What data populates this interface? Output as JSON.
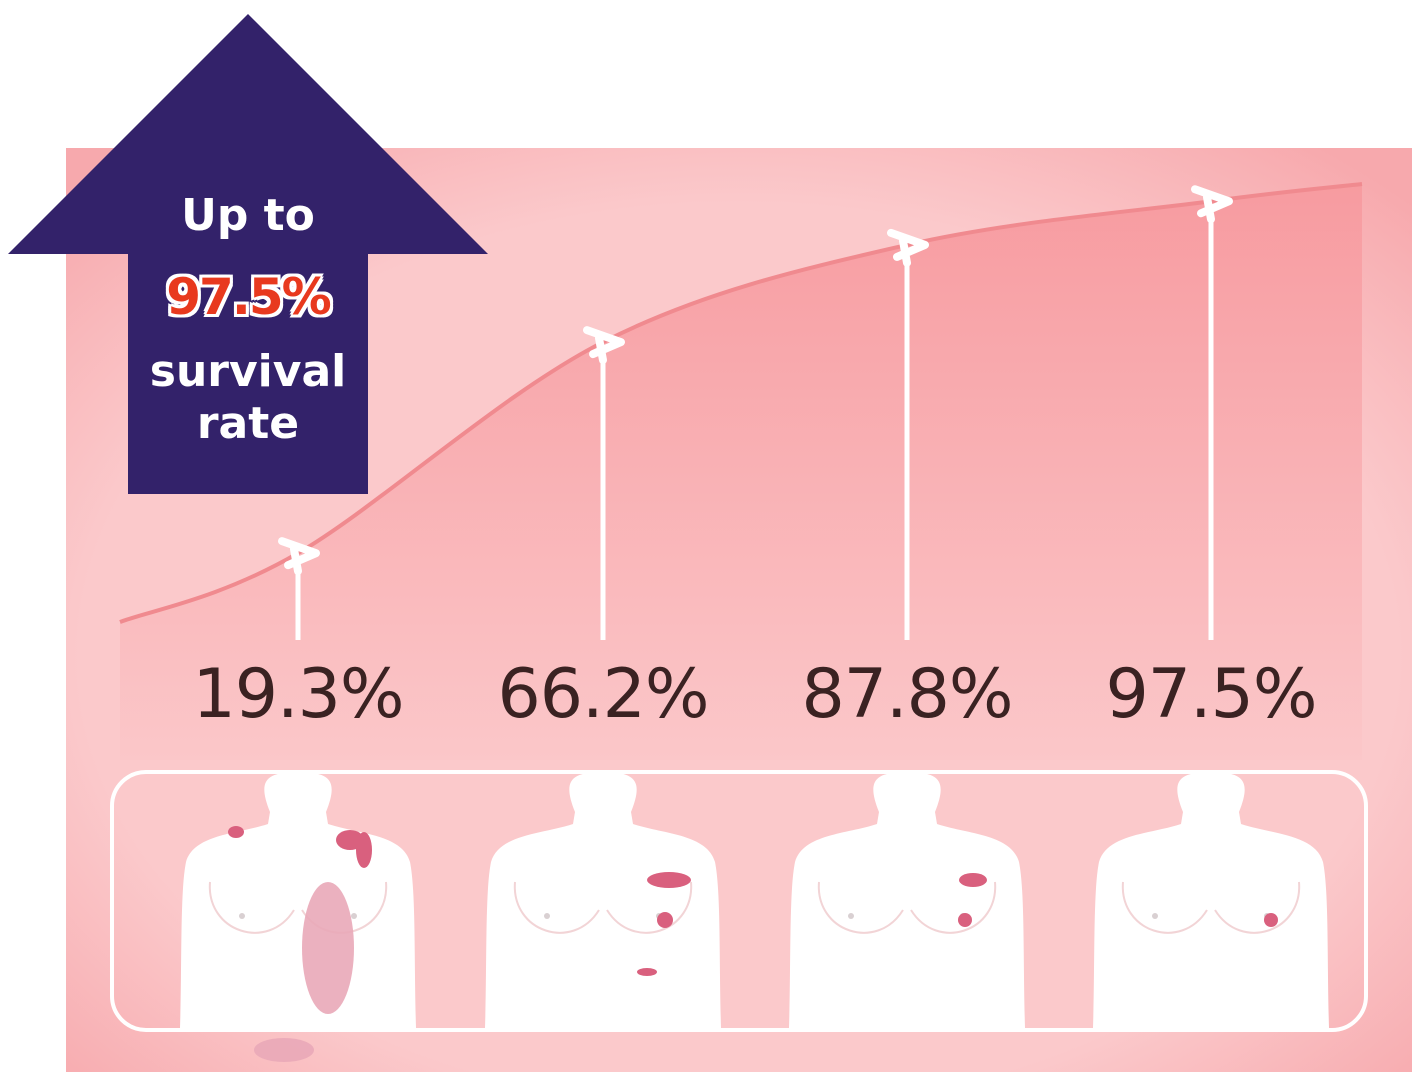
{
  "callout": {
    "line1": "Up to",
    "value": "97.5%",
    "line3": "survival",
    "line4": "rate"
  },
  "colors": {
    "arrow": "#33226a",
    "panel": "#fbc7c9",
    "curve": "#f08a8f",
    "highlight": "#e8391e",
    "mark": "#d9607e",
    "label": "#3a2222"
  },
  "chart_data": {
    "type": "area",
    "categories": [
      "",
      "",
      "",
      ""
    ],
    "values": [
      19.3,
      66.2,
      87.8,
      97.5
    ],
    "data_labels": [
      "19.3%",
      "66.2%",
      "87.8%",
      "97.5%"
    ],
    "ylim": [
      0,
      100
    ],
    "grid": false,
    "legend": "none"
  }
}
